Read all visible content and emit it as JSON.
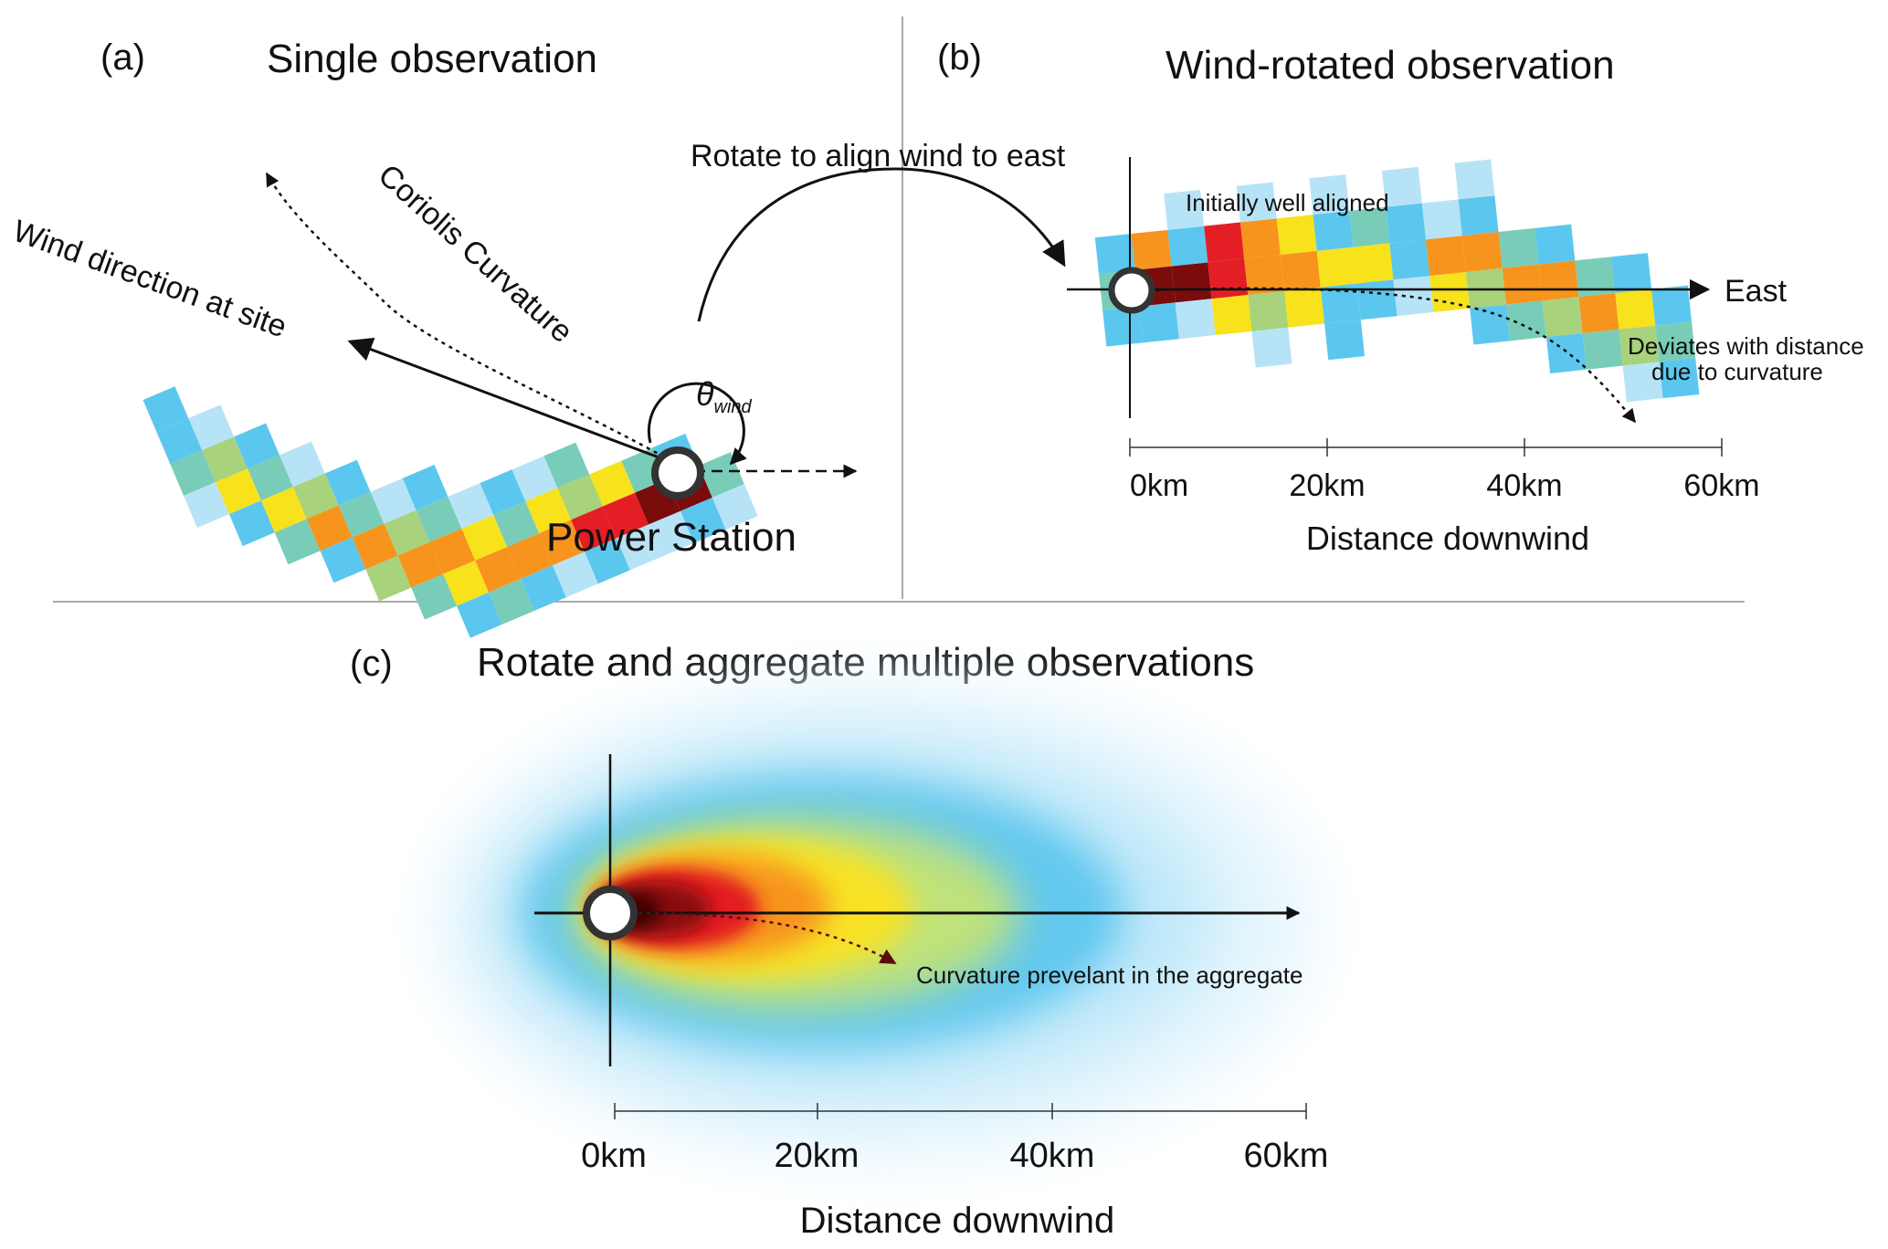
{
  "panels": {
    "a": {
      "label": "(a)",
      "title": "Single observation",
      "wind_label": "Wind direction at site",
      "coriolis_label": "Coriolis Curvature",
      "theta_symbol": "θ",
      "theta_subscript": "wind",
      "station_label": "Power Station"
    },
    "b": {
      "label": "(b)",
      "title": "Wind-rotated observation",
      "rotate_label": "Rotate to align wind to east",
      "aligned_label": "Initially well aligned",
      "east_label": "East",
      "deviates_line1": "Deviates with distance",
      "deviates_line2": "due to curvature",
      "ticks": [
        "0km",
        "20km",
        "40km",
        "60km"
      ],
      "axis_label": "Distance downwind"
    },
    "c": {
      "label": "(c)",
      "title": "Rotate and aggregate multiple observations",
      "curvature_label": "Curvature prevelant in the aggregate",
      "ticks": [
        "0km",
        "20km",
        "40km",
        "60km"
      ],
      "axis_label": "Distance downwind"
    }
  },
  "colors": {
    "light_blue": "#b7e3f7",
    "blue": "#5bc7ee",
    "teal": "#79cdb8",
    "green": "#a8d27c",
    "yellow": "#f7e21c",
    "orange": "#f7941d",
    "red": "#e31e24",
    "dark_red": "#7a0c0c"
  }
}
